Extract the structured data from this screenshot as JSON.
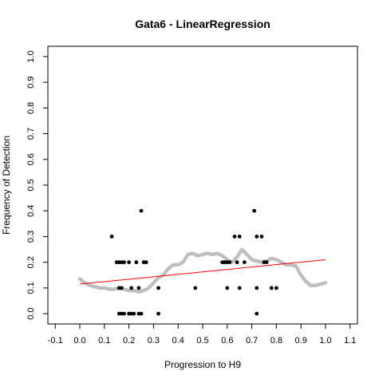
{
  "chart_data": {
    "type": "scatter",
    "title": "Gata6 - LinearRegression",
    "xlabel": "Progression to H9",
    "ylabel": "Frequency of Detection",
    "xlim": [
      -0.13,
      1.13
    ],
    "ylim": [
      -0.04,
      1.04
    ],
    "x_ticks": [
      "-0.1",
      "0.0",
      "0.1",
      "0.2",
      "0.3",
      "0.4",
      "0.5",
      "0.6",
      "0.7",
      "0.8",
      "0.9",
      "1.0",
      "1.1"
    ],
    "y_ticks": [
      "0.0",
      "0.1",
      "0.2",
      "0.3",
      "0.4",
      "0.5",
      "0.6",
      "0.7",
      "0.8",
      "0.9",
      "1.0"
    ],
    "grid": false,
    "legend": "none",
    "colors": {
      "observed": "#000000",
      "smoothed": "#bebebe",
      "regression": "#ff0000",
      "frame": "#000000"
    },
    "series": [
      {
        "kind": "observed-points",
        "points": [
          [
            0.13,
            0.3
          ],
          [
            0.15,
            0.2
          ],
          [
            0.16,
            0.2
          ],
          [
            0.17,
            0.2
          ],
          [
            0.18,
            0.2
          ],
          [
            0.16,
            0.1
          ],
          [
            0.17,
            0.1
          ],
          [
            0.16,
            0.0
          ],
          [
            0.17,
            0.0
          ],
          [
            0.18,
            0.0
          ],
          [
            0.2,
            0.0
          ],
          [
            0.21,
            0.0
          ],
          [
            0.22,
            0.0
          ],
          [
            0.24,
            0.0
          ],
          [
            0.25,
            0.0
          ],
          [
            0.2,
            0.2
          ],
          [
            0.23,
            0.2
          ],
          [
            0.25,
            0.4
          ],
          [
            0.26,
            0.2
          ],
          [
            0.27,
            0.2
          ],
          [
            0.21,
            0.1
          ],
          [
            0.24,
            0.1
          ],
          [
            0.32,
            0.0
          ],
          [
            0.32,
            0.1
          ],
          [
            0.47,
            0.1
          ],
          [
            0.58,
            0.2
          ],
          [
            0.59,
            0.2
          ],
          [
            0.6,
            0.2
          ],
          [
            0.61,
            0.2
          ],
          [
            0.6,
            0.1
          ],
          [
            0.63,
            0.3
          ],
          [
            0.65,
            0.3
          ],
          [
            0.64,
            0.2
          ],
          [
            0.65,
            0.1
          ],
          [
            0.67,
            0.2
          ],
          [
            0.71,
            0.4
          ],
          [
            0.72,
            0.3
          ],
          [
            0.74,
            0.3
          ],
          [
            0.72,
            0.1
          ],
          [
            0.72,
            0.0
          ],
          [
            0.75,
            0.2
          ],
          [
            0.76,
            0.2
          ],
          [
            0.78,
            0.1
          ],
          [
            0.8,
            0.1
          ]
        ]
      },
      {
        "kind": "smoothed-frequency",
        "points": [
          [
            0.0,
            0.135
          ],
          [
            0.02,
            0.12
          ],
          [
            0.04,
            0.11
          ],
          [
            0.06,
            0.105
          ],
          [
            0.08,
            0.1
          ],
          [
            0.1,
            0.1
          ],
          [
            0.12,
            0.095
          ],
          [
            0.14,
            0.095
          ],
          [
            0.16,
            0.1
          ],
          [
            0.18,
            0.095
          ],
          [
            0.2,
            0.09
          ],
          [
            0.22,
            0.09
          ],
          [
            0.24,
            0.085
          ],
          [
            0.26,
            0.09
          ],
          [
            0.28,
            0.1
          ],
          [
            0.3,
            0.12
          ],
          [
            0.32,
            0.14
          ],
          [
            0.34,
            0.15
          ],
          [
            0.36,
            0.175
          ],
          [
            0.38,
            0.19
          ],
          [
            0.4,
            0.19
          ],
          [
            0.42,
            0.2
          ],
          [
            0.44,
            0.23
          ],
          [
            0.46,
            0.235
          ],
          [
            0.48,
            0.225
          ],
          [
            0.5,
            0.23
          ],
          [
            0.52,
            0.235
          ],
          [
            0.54,
            0.23
          ],
          [
            0.56,
            0.235
          ],
          [
            0.58,
            0.225
          ],
          [
            0.6,
            0.21
          ],
          [
            0.62,
            0.2
          ],
          [
            0.64,
            0.22
          ],
          [
            0.66,
            0.25
          ],
          [
            0.68,
            0.23
          ],
          [
            0.7,
            0.21
          ],
          [
            0.72,
            0.205
          ],
          [
            0.74,
            0.2
          ],
          [
            0.76,
            0.205
          ],
          [
            0.78,
            0.215
          ],
          [
            0.8,
            0.21
          ],
          [
            0.82,
            0.2
          ],
          [
            0.84,
            0.19
          ],
          [
            0.86,
            0.19
          ],
          [
            0.88,
            0.185
          ],
          [
            0.9,
            0.15
          ],
          [
            0.92,
            0.125
          ],
          [
            0.94,
            0.11
          ],
          [
            0.96,
            0.11
          ],
          [
            0.98,
            0.115
          ],
          [
            1.0,
            0.12
          ]
        ]
      },
      {
        "kind": "regression-line",
        "points": [
          [
            0.0,
            0.115
          ],
          [
            1.0,
            0.21
          ]
        ]
      }
    ]
  }
}
